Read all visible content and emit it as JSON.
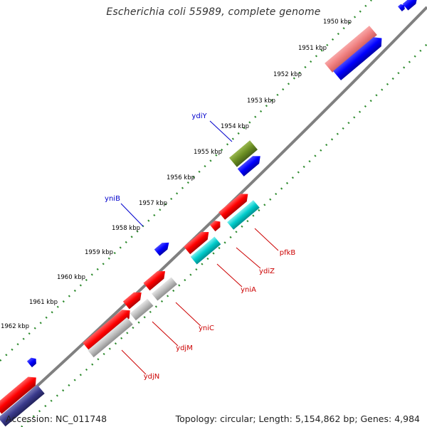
{
  "title": "Escherichia coli 55989, complete genome",
  "footer": {
    "accession_label": "Accession:",
    "accession": "NC_011748",
    "topology_label": "Topology:",
    "topology": "circular",
    "length_label": "Length:",
    "length": "5,154,862 bp",
    "genes_label": "Genes:",
    "genes": "4,984"
  },
  "colors": {
    "backbone": "#808080",
    "tick": "#2e8b2e",
    "forward_gene": "#ff0000",
    "forward_gene_light": "#f08080",
    "reverse_gene": "#0000ff",
    "reverse_gene_dark": "#3a3a8c",
    "gray_gene": "#b8b8b8",
    "cyan_gene": "#00cccc",
    "olive_gene": "#6b8e23",
    "label_red": "#cc0000",
    "label_blue": "#0000cc"
  },
  "scale_labels": [
    "1950 kbp",
    "1951 kbp",
    "1952 kbp",
    "1953 kbp",
    "1954 kbp",
    "1955 kbp",
    "1956 kbp",
    "1957 kbp",
    "1958 kbp",
    "1959 kbp",
    "1960 kbp",
    "1961 kbp",
    "1962 kbp"
  ],
  "gene_labels": [
    {
      "name": "ydiY",
      "color": "blue"
    },
    {
      "name": "yniB",
      "color": "blue"
    },
    {
      "name": "pfkB",
      "color": "red"
    },
    {
      "name": "ydiZ",
      "color": "red"
    },
    {
      "name": "yniA",
      "color": "red"
    },
    {
      "name": "yniC",
      "color": "red"
    },
    {
      "name": "ydjM",
      "color": "red"
    },
    {
      "name": "ydjN",
      "color": "red"
    }
  ]
}
